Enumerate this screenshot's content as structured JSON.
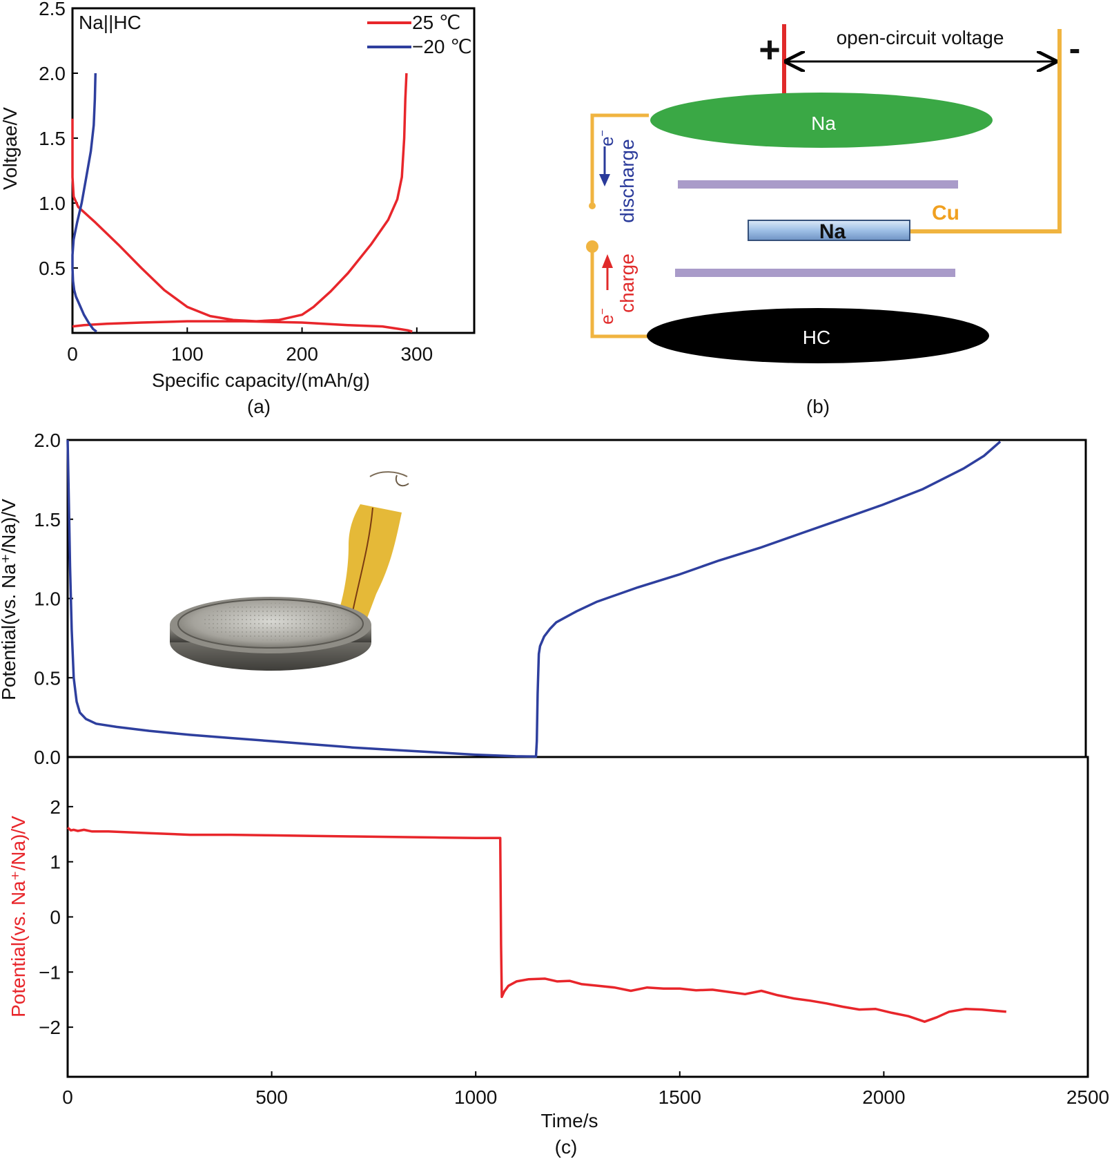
{
  "figures": {
    "a": {
      "caption": "(a)"
    },
    "b": {
      "caption": "(b)",
      "labels": {
        "ocv": "open-circuit voltage",
        "plus": "+",
        "minus": "-",
        "na_top": "Na",
        "na_mid": "Na",
        "cu": "Cu",
        "hc": "HC",
        "discharge": "discharge",
        "charge": "charge",
        "e_discharge": "e",
        "e_charge": "e",
        "e_sup": "−"
      },
      "colors": {
        "na_top": "#3aa845",
        "hc": "#000000",
        "wire": "#f0b440",
        "separator": "#a99bc9",
        "plus_lead": "#e02a2a",
        "arrow_discharge": "#2a3a9a",
        "arrow_charge": "#e02a2a"
      }
    },
    "c": {
      "caption": "(c)"
    }
  },
  "chart_data": [
    {
      "id": "a",
      "type": "line",
      "title": "",
      "annotation": "Na||HC",
      "xlabel": "Specific capacity/(mAh/g)",
      "ylabel": "Voltgae/V",
      "xlim": [
        0,
        350
      ],
      "ylim": [
        0,
        2.5
      ],
      "xticks": [
        "0",
        "100",
        "200",
        "300"
      ],
      "xtick_values": [
        0,
        100,
        200,
        300
      ],
      "yticks": [
        "0.5",
        "1.0",
        "1.5",
        "2.0",
        "2.5"
      ],
      "ytick_values": [
        0.5,
        1.0,
        1.5,
        2.0,
        2.5
      ],
      "grid": false,
      "legend": "top-right",
      "series": [
        {
          "name": "25 ℃",
          "color": "#e8262b",
          "segments": [
            [
              [
                0,
                1.65
              ],
              [
                0,
                1.5
              ],
              [
                0,
                1.2
              ],
              [
                1,
                1.05
              ],
              [
                5,
                0.97
              ],
              [
                20,
                0.85
              ],
              [
                40,
                0.68
              ],
              [
                60,
                0.5
              ],
              [
                80,
                0.33
              ],
              [
                100,
                0.2
              ],
              [
                120,
                0.13
              ],
              [
                140,
                0.1
              ],
              [
                160,
                0.09
              ],
              [
                180,
                0.1
              ],
              [
                200,
                0.14
              ],
              [
                210,
                0.2
              ],
              [
                225,
                0.32
              ],
              [
                240,
                0.46
              ],
              [
                260,
                0.68
              ],
              [
                275,
                0.87
              ],
              [
                283,
                1.03
              ],
              [
                287,
                1.2
              ],
              [
                289,
                1.5
              ],
              [
                290,
                1.8
              ],
              [
                291,
                2.0
              ]
            ],
            [
              [
                0,
                0.05
              ],
              [
                10,
                0.06
              ],
              [
                30,
                0.07
              ],
              [
                60,
                0.08
              ],
              [
                100,
                0.09
              ],
              [
                150,
                0.09
              ],
              [
                200,
                0.08
              ],
              [
                240,
                0.06
              ],
              [
                270,
                0.05
              ],
              [
                285,
                0.03
              ],
              [
                292,
                0.02
              ],
              [
                296,
                0.01
              ]
            ]
          ]
        },
        {
          "name": "−20 ℃",
          "color": "#2e3f9e",
          "segments": [
            [
              [
                20,
                2.0
              ],
              [
                19.5,
                1.8
              ],
              [
                18.5,
                1.6
              ],
              [
                16,
                1.4
              ],
              [
                12,
                1.2
              ],
              [
                8,
                1.0
              ],
              [
                4,
                0.85
              ],
              [
                1,
                0.72
              ],
              [
                0,
                0.6
              ],
              [
                0,
                0.5
              ],
              [
                0.5,
                0.4
              ],
              [
                1.5,
                0.33
              ],
              [
                3,
                0.28
              ],
              [
                6,
                0.22
              ],
              [
                10,
                0.14
              ],
              [
                14,
                0.08
              ],
              [
                18,
                0.03
              ],
              [
                21,
                0.01
              ]
            ]
          ]
        }
      ]
    },
    {
      "id": "c-top",
      "type": "line",
      "title": "",
      "xlabel": "",
      "ylabel": "Potential(vs. Na⁺/Na)/V",
      "xlim": [
        0,
        2500
      ],
      "ylim": [
        0,
        2.0
      ],
      "yticks": [
        "0.0",
        "0.5",
        "1.0",
        "1.5",
        "2.0"
      ],
      "ytick_values": [
        0,
        0.5,
        1.0,
        1.5,
        2.0
      ],
      "grid": false,
      "series": [
        {
          "name": "",
          "color": "#2e3f9e",
          "points": [
            [
              0,
              2.0
            ],
            [
              3,
              1.6
            ],
            [
              6,
              1.2
            ],
            [
              10,
              0.8
            ],
            [
              15,
              0.5
            ],
            [
              22,
              0.35
            ],
            [
              30,
              0.28
            ],
            [
              45,
              0.24
            ],
            [
              70,
              0.21
            ],
            [
              120,
              0.19
            ],
            [
              200,
              0.165
            ],
            [
              300,
              0.14
            ],
            [
              400,
              0.12
            ],
            [
              500,
              0.1
            ],
            [
              600,
              0.08
            ],
            [
              700,
              0.06
            ],
            [
              800,
              0.045
            ],
            [
              900,
              0.03
            ],
            [
              1000,
              0.015
            ],
            [
              1100,
              0.005
            ],
            [
              1150,
              0.003
            ],
            [
              1152,
              0.1
            ],
            [
              1154,
              0.4
            ],
            [
              1157,
              0.65
            ],
            [
              1160,
              0.7
            ],
            [
              1170,
              0.76
            ],
            [
              1185,
              0.81
            ],
            [
              1200,
              0.85
            ],
            [
              1250,
              0.92
            ],
            [
              1300,
              0.98
            ],
            [
              1400,
              1.07
            ],
            [
              1500,
              1.15
            ],
            [
              1600,
              1.24
            ],
            [
              1700,
              1.32
            ],
            [
              1800,
              1.41
            ],
            [
              1900,
              1.5
            ],
            [
              2000,
              1.59
            ],
            [
              2100,
              1.69
            ],
            [
              2200,
              1.82
            ],
            [
              2250,
              1.9
            ],
            [
              2290,
              1.99
            ]
          ]
        }
      ]
    },
    {
      "id": "c-bottom",
      "type": "line",
      "title": "",
      "xlabel": "Time/s",
      "ylabel": "Potential(vs. Na⁺/Na)/V",
      "xlim": [
        0,
        2500
      ],
      "ylim": [
        -2.9,
        2.9
      ],
      "xticks": [
        "0",
        "500",
        "1000",
        "1500",
        "2000",
        "2500"
      ],
      "xtick_values": [
        0,
        500,
        1000,
        1500,
        2000,
        2500
      ],
      "yticks": [
        "2",
        "1",
        "0",
        "−1",
        "−2"
      ],
      "ytick_values": [
        2,
        1,
        0,
        -1,
        -2
      ],
      "grid": false,
      "series": [
        {
          "name": "",
          "color": "#e8262b",
          "points": [
            [
              0,
              1.62
            ],
            [
              8,
              1.57
            ],
            [
              15,
              1.58
            ],
            [
              25,
              1.56
            ],
            [
              40,
              1.58
            ],
            [
              60,
              1.55
            ],
            [
              100,
              1.55
            ],
            [
              200,
              1.52
            ],
            [
              300,
              1.49
            ],
            [
              400,
              1.49
            ],
            [
              500,
              1.48
            ],
            [
              600,
              1.47
            ],
            [
              700,
              1.46
            ],
            [
              800,
              1.45
            ],
            [
              900,
              1.44
            ],
            [
              1000,
              1.43
            ],
            [
              1060,
              1.43
            ],
            [
              1062,
              -0.5
            ],
            [
              1064,
              -1.45
            ],
            [
              1070,
              -1.35
            ],
            [
              1080,
              -1.25
            ],
            [
              1100,
              -1.17
            ],
            [
              1130,
              -1.13
            ],
            [
              1170,
              -1.12
            ],
            [
              1200,
              -1.17
            ],
            [
              1230,
              -1.16
            ],
            [
              1260,
              -1.22
            ],
            [
              1300,
              -1.25
            ],
            [
              1340,
              -1.28
            ],
            [
              1380,
              -1.34
            ],
            [
              1420,
              -1.28
            ],
            [
              1460,
              -1.3
            ],
            [
              1500,
              -1.3
            ],
            [
              1540,
              -1.33
            ],
            [
              1580,
              -1.32
            ],
            [
              1620,
              -1.36
            ],
            [
              1660,
              -1.4
            ],
            [
              1700,
              -1.34
            ],
            [
              1740,
              -1.42
            ],
            [
              1780,
              -1.48
            ],
            [
              1820,
              -1.52
            ],
            [
              1860,
              -1.57
            ],
            [
              1900,
              -1.63
            ],
            [
              1940,
              -1.68
            ],
            [
              1980,
              -1.67
            ],
            [
              2020,
              -1.74
            ],
            [
              2060,
              -1.8
            ],
            [
              2100,
              -1.9
            ],
            [
              2130,
              -1.82
            ],
            [
              2160,
              -1.72
            ],
            [
              2200,
              -1.67
            ],
            [
              2240,
              -1.68
            ],
            [
              2270,
              -1.7
            ],
            [
              2300,
              -1.72
            ]
          ]
        }
      ]
    }
  ]
}
